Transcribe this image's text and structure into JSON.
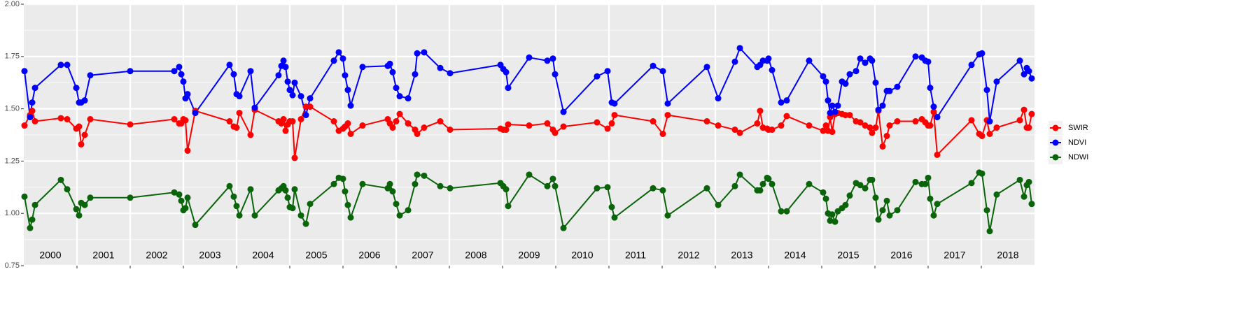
{
  "chart_data": {
    "type": "line",
    "x": [
      2000.013,
      2000.118,
      2000.158,
      2000.211,
      2000.697,
      2000.816,
      2000.987,
      2001.039,
      2001.079,
      2001.145,
      2001.25,
      2002.0,
      2002.829,
      2002.921,
      2002.961,
      2003.0,
      2003.039,
      2003.079,
      2003.224,
      2003.868,
      2003.947,
      2004.0,
      2004.053,
      2004.263,
      2004.342,
      2004.789,
      2004.842,
      2004.882,
      2004.921,
      2004.961,
      2005.0,
      2005.053,
      2005.092,
      2005.211,
      2005.303,
      2005.382,
      2005.829,
      2005.921,
      2006.0,
      2006.039,
      2006.092,
      2006.145,
      2006.368,
      2006.842,
      2006.882,
      2006.934,
      2007.0,
      2007.066,
      2007.224,
      2007.355,
      2007.395,
      2007.526,
      2007.829,
      2008.013,
      2008.961,
      2009.013,
      2009.066,
      2009.105,
      2009.5,
      2009.842,
      2009.947,
      2009.987,
      2010.145,
      2010.776,
      2010.974,
      2011.053,
      2011.105,
      2011.829,
      2012.013,
      2012.105,
      2012.842,
      2013.053,
      2013.368,
      2013.461,
      2013.789,
      2013.842,
      2013.895,
      2013.974,
      2014.0,
      2014.066,
      2014.237,
      2014.342,
      2014.763,
      2015.026,
      2015.079,
      2015.118,
      2015.158,
      2015.197,
      2015.25,
      2015.303,
      2015.382,
      2015.447,
      2015.526,
      2015.645,
      2015.724,
      2015.816,
      2015.908,
      2015.947,
      2016.013,
      2016.066,
      2016.145,
      2016.224,
      2016.276,
      2016.421,
      2016.763,
      2016.882,
      2016.947,
      2017.0,
      2017.039,
      2017.105,
      2017.171,
      2017.816,
      2017.961,
      2018.013,
      2018.105,
      2018.158,
      2018.289,
      2018.724,
      2018.803,
      2018.855,
      2018.895,
      2018.947
    ],
    "series": [
      {
        "name": "SWIR",
        "color": "#ff0000",
        "values": [
          1.42,
          1.47,
          1.49,
          1.44,
          1.455,
          1.45,
          1.405,
          1.415,
          1.33,
          1.375,
          1.45,
          1.425,
          1.45,
          1.43,
          1.43,
          1.45,
          1.445,
          1.3,
          1.49,
          1.44,
          1.415,
          1.41,
          1.48,
          1.375,
          1.495,
          1.44,
          1.43,
          1.45,
          1.395,
          1.425,
          1.44,
          1.44,
          1.265,
          1.45,
          1.51,
          1.51,
          1.44,
          1.395,
          1.405,
          1.415,
          1.43,
          1.38,
          1.42,
          1.45,
          1.43,
          1.41,
          1.44,
          1.475,
          1.43,
          1.4,
          1.38,
          1.41,
          1.44,
          1.4,
          1.405,
          1.4,
          1.4,
          1.425,
          1.42,
          1.43,
          1.4,
          1.385,
          1.415,
          1.435,
          1.405,
          1.43,
          1.47,
          1.44,
          1.38,
          1.47,
          1.44,
          1.42,
          1.4,
          1.385,
          1.43,
          1.49,
          1.41,
          1.405,
          1.4,
          1.4,
          1.42,
          1.465,
          1.42,
          1.395,
          1.42,
          1.395,
          1.46,
          1.39,
          1.475,
          1.48,
          1.475,
          1.47,
          1.47,
          1.44,
          1.435,
          1.42,
          1.41,
          1.385,
          1.41,
          1.49,
          1.32,
          1.37,
          1.42,
          1.44,
          1.44,
          1.45,
          1.435,
          1.42,
          1.42,
          1.485,
          1.28,
          1.445,
          1.38,
          1.37,
          1.445,
          1.38,
          1.41,
          1.445,
          1.495,
          1.41,
          1.41,
          1.475
        ]
      },
      {
        "name": "NDVI",
        "color": "#0000ff",
        "values": [
          1.68,
          1.46,
          1.53,
          1.6,
          1.71,
          1.71,
          1.6,
          1.53,
          1.53,
          1.54,
          1.66,
          1.68,
          1.68,
          1.7,
          1.665,
          1.63,
          1.55,
          1.57,
          1.48,
          1.71,
          1.665,
          1.57,
          1.56,
          1.68,
          1.505,
          1.66,
          1.705,
          1.73,
          1.7,
          1.63,
          1.59,
          1.565,
          1.625,
          1.56,
          1.47,
          1.55,
          1.73,
          1.77,
          1.74,
          1.66,
          1.59,
          1.515,
          1.7,
          1.705,
          1.715,
          1.675,
          1.6,
          1.56,
          1.55,
          1.665,
          1.765,
          1.77,
          1.695,
          1.67,
          1.71,
          1.69,
          1.675,
          1.6,
          1.745,
          1.73,
          1.74,
          1.665,
          1.485,
          1.655,
          1.68,
          1.53,
          1.525,
          1.705,
          1.68,
          1.525,
          1.7,
          1.55,
          1.725,
          1.79,
          1.7,
          1.71,
          1.73,
          1.73,
          1.74,
          1.685,
          1.53,
          1.54,
          1.73,
          1.655,
          1.63,
          1.54,
          1.48,
          1.515,
          1.485,
          1.515,
          1.63,
          1.62,
          1.665,
          1.68,
          1.74,
          1.72,
          1.74,
          1.73,
          1.625,
          1.495,
          1.515,
          1.585,
          1.585,
          1.605,
          1.75,
          1.745,
          1.73,
          1.725,
          1.6,
          1.51,
          1.46,
          1.71,
          1.76,
          1.765,
          1.59,
          1.44,
          1.63,
          1.73,
          1.665,
          1.695,
          1.68,
          1.645
        ]
      },
      {
        "name": "NDWI",
        "color": "#0a640a",
        "values": [
          1.08,
          0.93,
          0.97,
          1.04,
          1.16,
          1.115,
          1.02,
          0.99,
          1.05,
          1.04,
          1.075,
          1.075,
          1.1,
          1.09,
          1.06,
          1.015,
          1.025,
          1.075,
          0.945,
          1.13,
          1.08,
          1.035,
          0.99,
          1.115,
          0.99,
          1.11,
          1.12,
          1.13,
          1.11,
          1.075,
          1.03,
          1.025,
          1.115,
          0.99,
          0.95,
          1.045,
          1.14,
          1.17,
          1.165,
          1.105,
          1.04,
          0.98,
          1.14,
          1.12,
          1.14,
          1.105,
          1.045,
          0.99,
          1.015,
          1.14,
          1.185,
          1.18,
          1.13,
          1.12,
          1.145,
          1.13,
          1.115,
          1.035,
          1.185,
          1.13,
          1.165,
          1.13,
          0.93,
          1.12,
          1.125,
          1.03,
          0.98,
          1.12,
          1.11,
          0.99,
          1.12,
          1.04,
          1.13,
          1.185,
          1.11,
          1.11,
          1.14,
          1.17,
          1.165,
          1.14,
          1.01,
          1.01,
          1.14,
          1.1,
          1.07,
          1.0,
          0.965,
          0.995,
          0.96,
          1.01,
          1.025,
          1.04,
          1.085,
          1.145,
          1.135,
          1.12,
          1.16,
          1.16,
          1.075,
          0.97,
          1.015,
          1.06,
          0.99,
          1.015,
          1.15,
          1.14,
          1.14,
          1.17,
          1.07,
          0.99,
          1.045,
          1.145,
          1.195,
          1.19,
          1.015,
          0.915,
          1.09,
          1.16,
          1.08,
          1.135,
          1.15,
          1.045
        ]
      }
    ],
    "xlim": [
      2000,
      2019
    ],
    "x_grid": [
      2001,
      2002,
      2003,
      2004,
      2005,
      2006,
      2007,
      2008,
      2009,
      2010,
      2011,
      2012,
      2013,
      2014,
      2015,
      2016,
      2017,
      2018
    ],
    "xticks": [
      {
        "value": 2000.5,
        "label": "2000"
      },
      {
        "value": 2001.5,
        "label": "2001"
      },
      {
        "value": 2002.5,
        "label": "2002"
      },
      {
        "value": 2003.5,
        "label": "2003"
      },
      {
        "value": 2004.5,
        "label": "2004"
      },
      {
        "value": 2005.5,
        "label": "2005"
      },
      {
        "value": 2006.5,
        "label": "2006"
      },
      {
        "value": 2007.5,
        "label": "2007"
      },
      {
        "value": 2008.5,
        "label": "2008"
      },
      {
        "value": 2009.5,
        "label": "2009"
      },
      {
        "value": 2010.5,
        "label": "2010"
      },
      {
        "value": 2011.5,
        "label": "2011"
      },
      {
        "value": 2012.5,
        "label": "2012"
      },
      {
        "value": 2013.5,
        "label": "2013"
      },
      {
        "value": 2014.5,
        "label": "2014"
      },
      {
        "value": 2015.5,
        "label": "2015"
      },
      {
        "value": 2016.5,
        "label": "2016"
      },
      {
        "value": 2017.5,
        "label": "2017"
      },
      {
        "value": 2018.5,
        "label": "2018"
      }
    ],
    "ylim": [
      0.75,
      2.0
    ],
    "yticks": [
      0.75,
      {
        "value": 1.0,
        "label": "1.00"
      },
      1.25,
      {
        "value": 1.5,
        "label": "1.50"
      },
      1.75,
      {
        "value": 2.0,
        "label": "2.00"
      }
    ],
    "grid": true,
    "legend": "right"
  }
}
